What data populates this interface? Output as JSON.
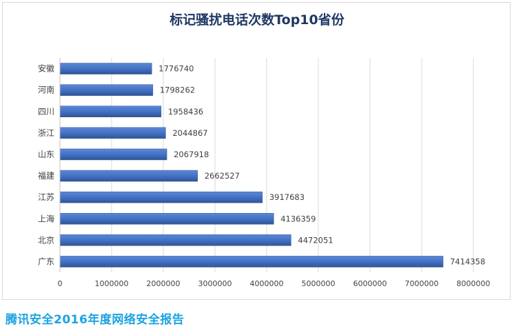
{
  "colors": {
    "bar": "#4472c4",
    "bar_dark": "#2f5597",
    "title": "#1f3864",
    "grid": "#d9d9d9",
    "label": "#404040",
    "footer": "#1aa3e0"
  },
  "footer": {
    "source": "腾讯安全2016年度网络安全报告"
  },
  "chart_data": {
    "type": "bar",
    "orientation": "horizontal",
    "title": "标记骚扰电话次数Top10省份",
    "xlabel": "",
    "ylabel": "",
    "xlim": [
      0,
      8000000
    ],
    "x_ticks": [
      "0",
      "1000000",
      "2000000",
      "3000000",
      "4000000",
      "5000000",
      "6000000",
      "7000000",
      "8000000"
    ],
    "grid": true,
    "legend": "none",
    "categories": [
      "安徽",
      "河南",
      "四川",
      "浙江",
      "山东",
      "福建",
      "江苏",
      "上海",
      "北京",
      "广东"
    ],
    "values": [
      1776740,
      1798262,
      1958436,
      2044867,
      2067918,
      2662527,
      3917683,
      4136359,
      4472051,
      7414358
    ],
    "data_labels": [
      "1776740",
      "1798262",
      "1958436",
      "2044867",
      "2067918",
      "2662527",
      "3917683",
      "4136359",
      "4472051",
      "7414358"
    ]
  }
}
